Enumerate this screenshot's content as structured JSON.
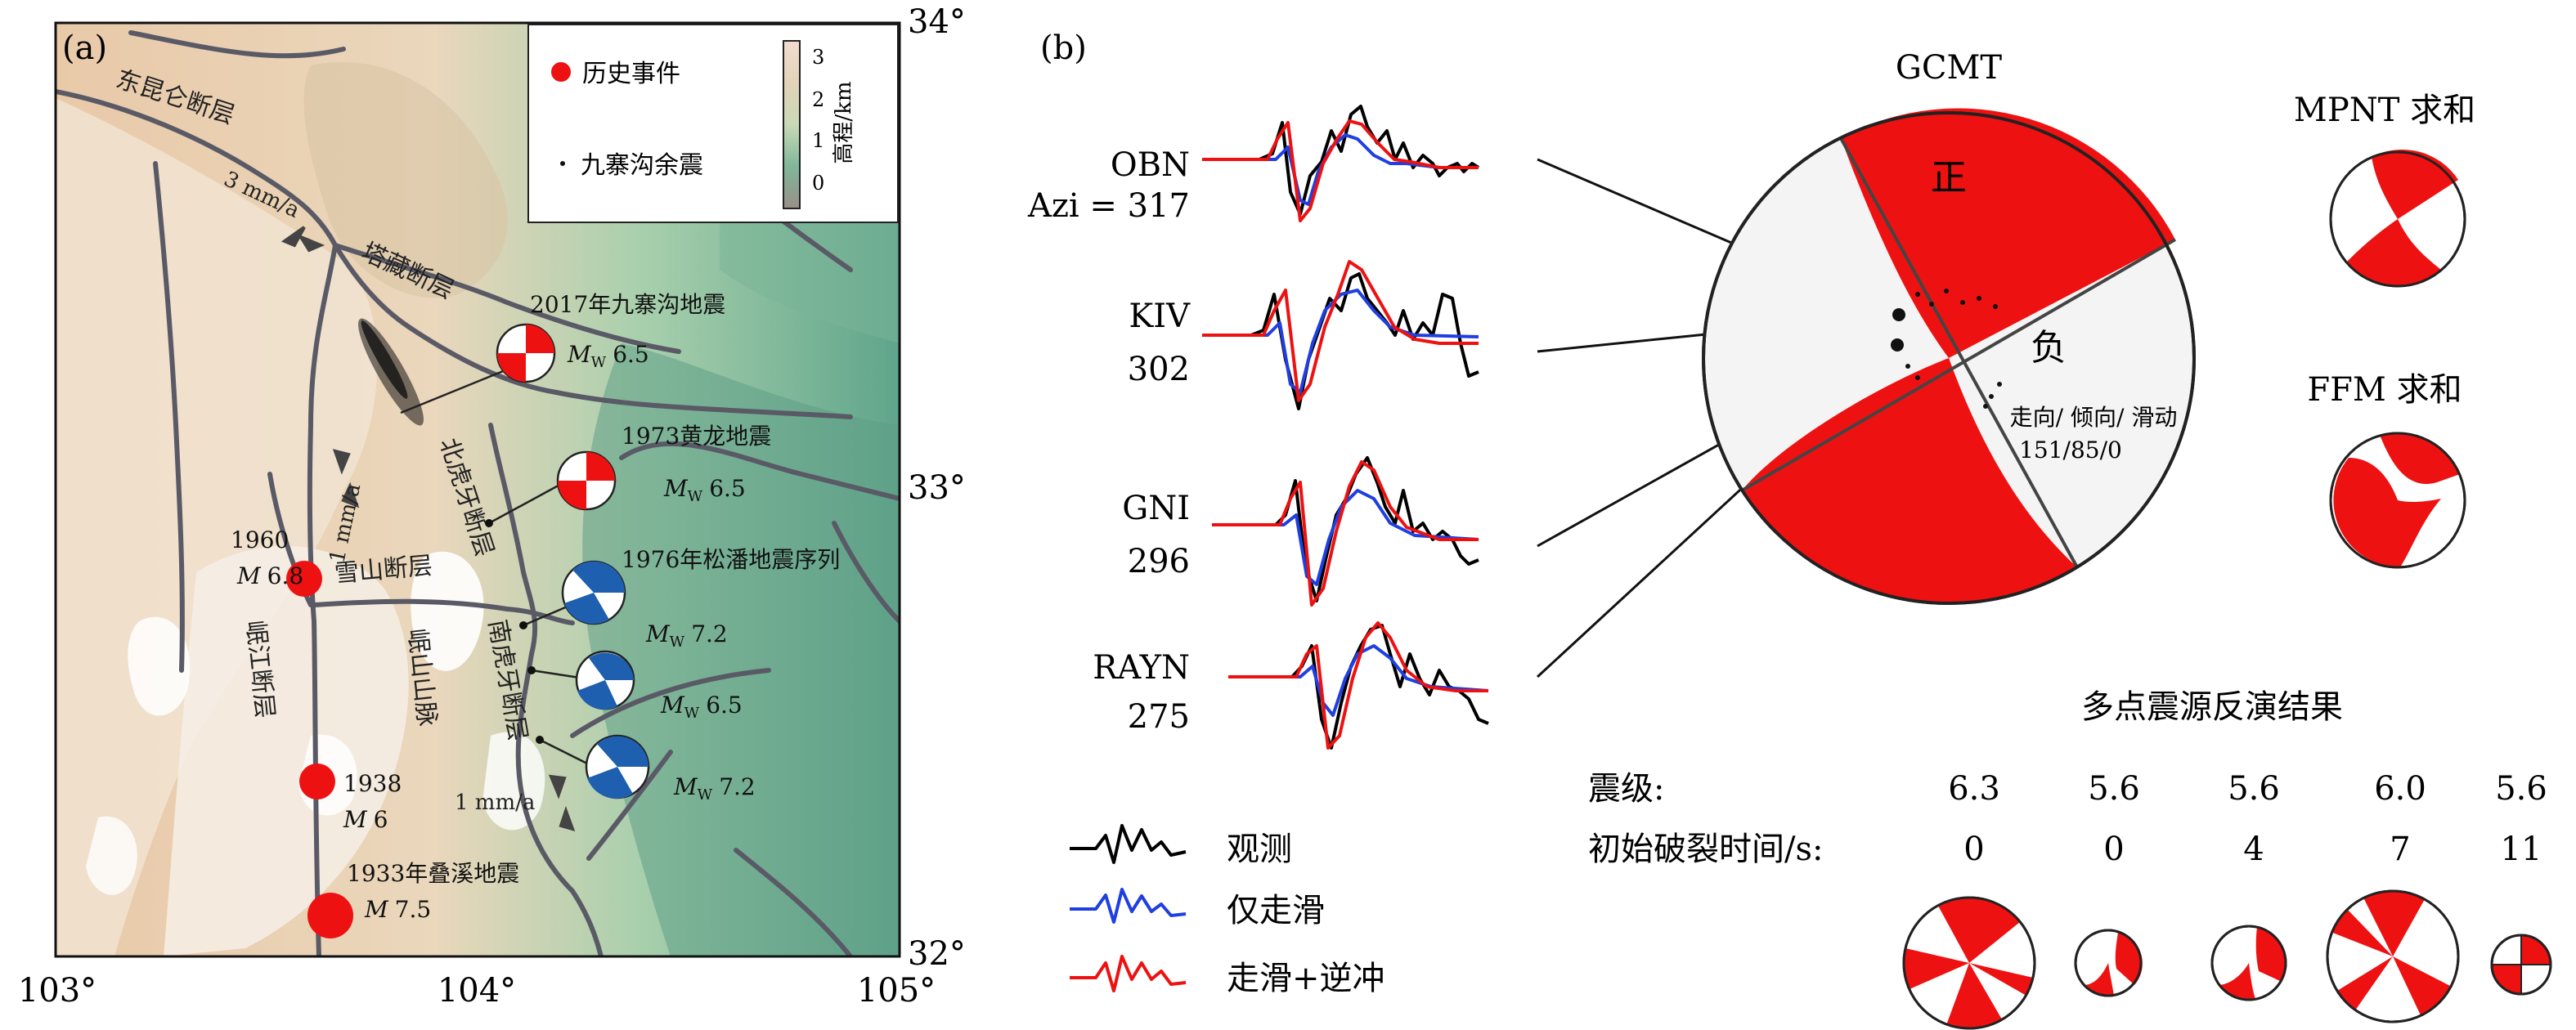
{
  "panel_a": {
    "label": "(a)",
    "lon_ticks": [
      "103°",
      "104°",
      "105°"
    ],
    "lat_ticks": [
      "34°",
      "33°",
      "32°"
    ],
    "legend": {
      "historical_events": "历史事件",
      "aftershocks": "九寨沟余震",
      "colorbar_label": "高程/km",
      "colorbar_ticks": [
        "3",
        "2",
        "1",
        "0"
      ]
    },
    "faults": {
      "east_kunlun": "东昆仑断层",
      "tazang": "塔藏断层",
      "huya_north": "北虎牙断层",
      "huya_south": "南虎牙断层",
      "xueshan": "雪山断层",
      "minjiang": "岷江断层",
      "minshan": "岷山山脉"
    },
    "rates": {
      "r1": "3 mm/a",
      "r2": "1 mm/a",
      "r3": "1 mm/a"
    },
    "events": {
      "jiuzhaigou_2017": {
        "name": "2017年九寨沟地震",
        "mag_prefix": "M",
        "mag_sub": "W",
        "mag": "6.5"
      },
      "huanglong_1973": {
        "name": "1973黄龙地震",
        "mag_prefix": "M",
        "mag_sub": "W",
        "mag": "6.5"
      },
      "songpan_1976": {
        "name": "1976年松潘地震序列",
        "mags": [
          "7.2",
          "6.5",
          "7.2"
        ],
        "mag_prefix": "M",
        "mag_sub": "W"
      },
      "e1960": {
        "year": "1960",
        "mag_prefix": "M",
        "mag": "6.8"
      },
      "e1938": {
        "year": "1938",
        "mag_prefix": "M",
        "mag": "6"
      },
      "diexi_1933": {
        "name": "1933年叠溪地震",
        "mag_prefix": "M",
        "mag": "7.5"
      }
    }
  },
  "panel_b": {
    "label": "(b)",
    "stations": [
      {
        "name": "OBN",
        "azi": "Azi = 317"
      },
      {
        "name": "KIV",
        "azi": "302"
      },
      {
        "name": "GNI",
        "azi": "296"
      },
      {
        "name": "RAYN",
        "azi": "275"
      }
    ],
    "waveform_legend": {
      "observed": "观测",
      "strike_slip": "仅走滑",
      "strike_slip_thrust": "走滑+逆冲"
    },
    "gcmt": {
      "title": "GCMT",
      "positive": "正",
      "negative": "负",
      "params_label": "走向/ 倾向/ 滑动",
      "params": "151/85/0"
    },
    "mpnt": "MPNT 求和",
    "ffm": "FFM 求和",
    "multipoint": {
      "title": "多点震源反演结果",
      "mag_label": "震级:",
      "time_label": "初始破裂时间/s:",
      "magnitudes": [
        "6.3",
        "5.6",
        "5.6",
        "6.0",
        "5.6"
      ],
      "times": [
        "0",
        "0",
        "4",
        "7",
        "11"
      ]
    },
    "colors": {
      "observed": "#000000",
      "strike_slip": "#1f3fe0",
      "thrust": "#ee1111",
      "mechanism_red": "#ee1111",
      "mechanism_blue": "#1f5fb0"
    }
  }
}
